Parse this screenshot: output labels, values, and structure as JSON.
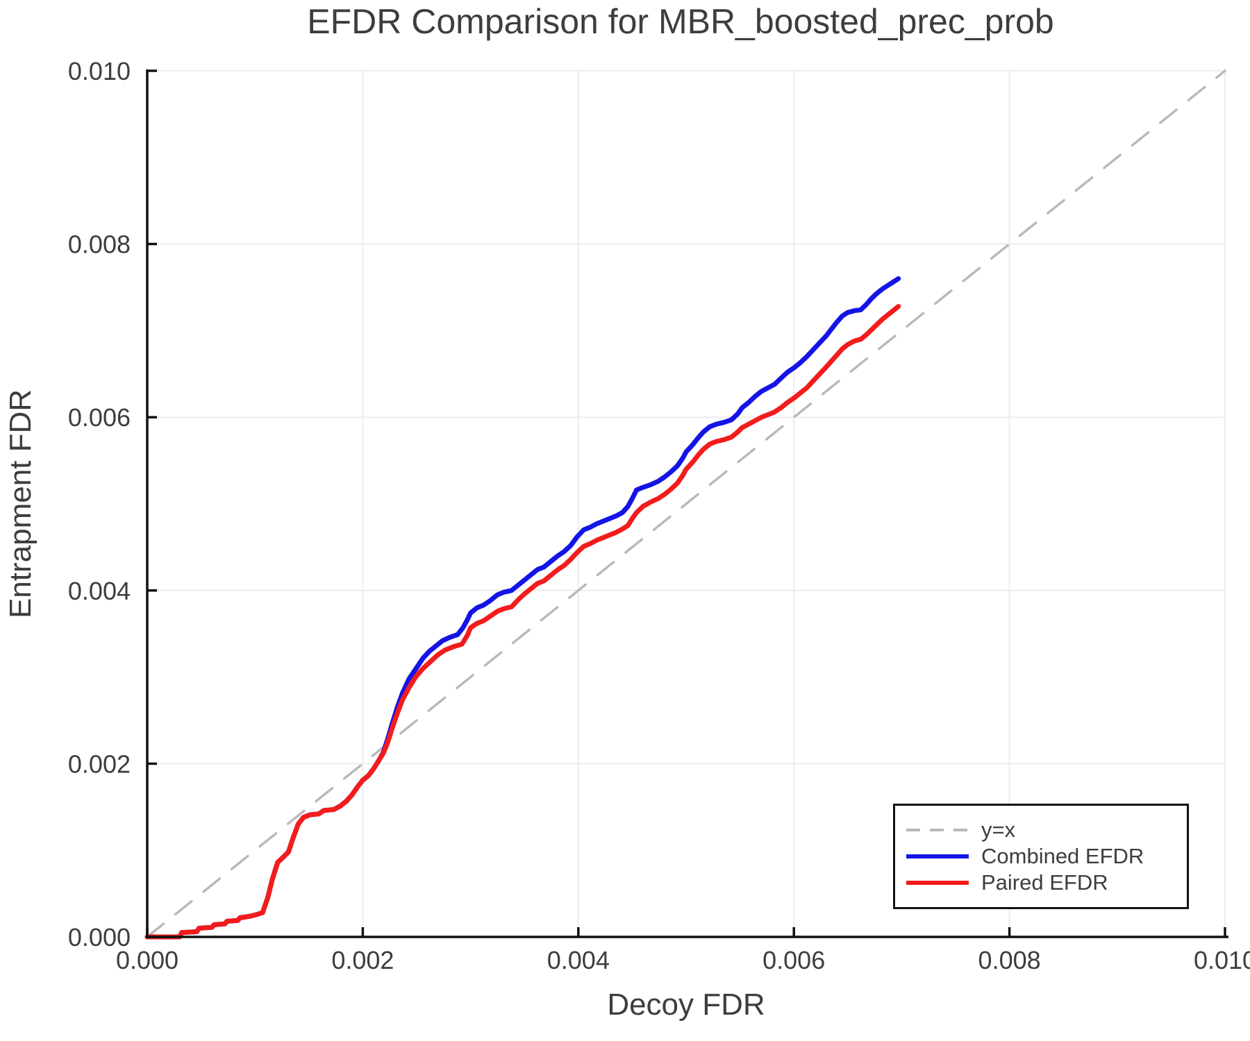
{
  "chart_data": {
    "type": "line",
    "title": "EFDR Comparison for MBR_boosted_prec_prob",
    "xlabel": "Decoy FDR",
    "ylabel": "Entrapment FDR",
    "xlim": [
      0,
      0.01
    ],
    "ylim": [
      0,
      0.01
    ],
    "xticks": {
      "values": [
        0,
        0.002,
        0.004,
        0.006,
        0.008,
        0.01
      ],
      "labels": [
        "0.000",
        "0.002",
        "0.004",
        "0.006",
        "0.008",
        "0.010"
      ]
    },
    "yticks": {
      "values": [
        0,
        0.002,
        0.004,
        0.006,
        0.008,
        0.01
      ],
      "labels": [
        "0.000",
        "0.002",
        "0.004",
        "0.006",
        "0.008",
        "0.010"
      ]
    },
    "grid": true,
    "legend_position": "lower right",
    "colors": {
      "reference": "#b9b9b9",
      "combined": "#1414e6",
      "paired": "#f31c1c",
      "axis": "#111111",
      "grid": "#ececec",
      "text": "#3d3d3d"
    },
    "series": [
      {
        "name": "y=x",
        "style": "dashed",
        "color": "#b9b9b9",
        "points": [
          [
            0,
            0
          ],
          [
            0.01,
            0.01
          ]
        ]
      },
      {
        "name": "Combined EFDR",
        "style": "solid",
        "color": "#1414e6",
        "points": [
          [
            0,
            0
          ],
          [
            0.0003,
            0
          ],
          [
            0.00032,
            5e-05
          ],
          [
            0.00046,
            6e-05
          ],
          [
            0.00048,
            0.0001
          ],
          [
            0.0006,
            0.00011
          ],
          [
            0.00062,
            0.00014
          ],
          [
            0.00072,
            0.00015
          ],
          [
            0.00074,
            0.00018
          ],
          [
            0.00084,
            0.00019
          ],
          [
            0.00086,
            0.00022
          ],
          [
            0.00096,
            0.00024
          ],
          [
            0.00102,
            0.00026
          ],
          [
            0.00107,
            0.00028
          ],
          [
            0.00112,
            0.00046
          ],
          [
            0.00116,
            0.00066
          ],
          [
            0.00121,
            0.00086
          ],
          [
            0.00127,
            0.00093
          ],
          [
            0.00131,
            0.00098
          ],
          [
            0.00135,
            0.00113
          ],
          [
            0.0014,
            0.0013
          ],
          [
            0.00145,
            0.00138
          ],
          [
            0.00151,
            0.00141
          ],
          [
            0.00159,
            0.00142
          ],
          [
            0.00164,
            0.00146
          ],
          [
            0.00173,
            0.00147
          ],
          [
            0.00179,
            0.00151
          ],
          [
            0.00185,
            0.00157
          ],
          [
            0.0019,
            0.00164
          ],
          [
            0.00195,
            0.00173
          ],
          [
            0.002,
            0.00181
          ],
          [
            0.00205,
            0.00186
          ],
          [
            0.0021,
            0.00194
          ],
          [
            0.00215,
            0.00204
          ],
          [
            0.00219,
            0.00213
          ],
          [
            0.00223,
            0.00228
          ],
          [
            0.00227,
            0.00245
          ],
          [
            0.00232,
            0.00265
          ],
          [
            0.00237,
            0.00282
          ],
          [
            0.00243,
            0.00298
          ],
          [
            0.00249,
            0.00309
          ],
          [
            0.00256,
            0.00322
          ],
          [
            0.00262,
            0.0033
          ],
          [
            0.00268,
            0.00336
          ],
          [
            0.00274,
            0.00342
          ],
          [
            0.00281,
            0.00346
          ],
          [
            0.00288,
            0.00349
          ],
          [
            0.00293,
            0.00357
          ],
          [
            0.00297,
            0.00366
          ],
          [
            0.003,
            0.00374
          ],
          [
            0.00306,
            0.0038
          ],
          [
            0.00312,
            0.00383
          ],
          [
            0.00318,
            0.00388
          ],
          [
            0.00325,
            0.00395
          ],
          [
            0.00331,
            0.00398
          ],
          [
            0.00338,
            0.004
          ],
          [
            0.00344,
            0.00406
          ],
          [
            0.0035,
            0.00412
          ],
          [
            0.00356,
            0.00418
          ],
          [
            0.00362,
            0.00424
          ],
          [
            0.00368,
            0.00427
          ],
          [
            0.00374,
            0.00433
          ],
          [
            0.00381,
            0.0044
          ],
          [
            0.00387,
            0.00445
          ],
          [
            0.00393,
            0.00452
          ],
          [
            0.00399,
            0.00462
          ],
          [
            0.00405,
            0.0047
          ],
          [
            0.00411,
            0.00473
          ],
          [
            0.00417,
            0.00477
          ],
          [
            0.00423,
            0.0048
          ],
          [
            0.00429,
            0.00483
          ],
          [
            0.00435,
            0.00486
          ],
          [
            0.00441,
            0.0049
          ],
          [
            0.00446,
            0.00497
          ],
          [
            0.0045,
            0.00506
          ],
          [
            0.00454,
            0.00516
          ],
          [
            0.0046,
            0.00519
          ],
          [
            0.00467,
            0.00522
          ],
          [
            0.00474,
            0.00526
          ],
          [
            0.0048,
            0.00531
          ],
          [
            0.00486,
            0.00537
          ],
          [
            0.00492,
            0.00544
          ],
          [
            0.00497,
            0.00553
          ],
          [
            0.005,
            0.0056
          ],
          [
            0.00506,
            0.00568
          ],
          [
            0.00511,
            0.00576
          ],
          [
            0.00516,
            0.00583
          ],
          [
            0.00522,
            0.00589
          ],
          [
            0.00528,
            0.00592
          ],
          [
            0.00535,
            0.00594
          ],
          [
            0.00542,
            0.00597
          ],
          [
            0.00548,
            0.00604
          ],
          [
            0.00552,
            0.00611
          ],
          [
            0.00558,
            0.00617
          ],
          [
            0.00564,
            0.00624
          ],
          [
            0.0057,
            0.0063
          ],
          [
            0.00576,
            0.00634
          ],
          [
            0.00582,
            0.00638
          ],
          [
            0.00588,
            0.00645
          ],
          [
            0.00594,
            0.00652
          ],
          [
            0.006,
            0.00657
          ],
          [
            0.00606,
            0.00663
          ],
          [
            0.00612,
            0.0067
          ],
          [
            0.00618,
            0.00678
          ],
          [
            0.00624,
            0.00686
          ],
          [
            0.0063,
            0.00694
          ],
          [
            0.00635,
            0.00702
          ],
          [
            0.0064,
            0.0071
          ],
          [
            0.00645,
            0.00717
          ],
          [
            0.0065,
            0.00721
          ],
          [
            0.00656,
            0.00723
          ],
          [
            0.00662,
            0.00724
          ],
          [
            0.00667,
            0.0073
          ],
          [
            0.00672,
            0.00737
          ],
          [
            0.00677,
            0.00743
          ],
          [
            0.00682,
            0.00748
          ],
          [
            0.00687,
            0.00752
          ],
          [
            0.00692,
            0.00756
          ],
          [
            0.00697,
            0.0076
          ]
        ]
      },
      {
        "name": "Paired EFDR",
        "style": "solid",
        "color": "#f31c1c",
        "points": [
          [
            0,
            0
          ],
          [
            0.0003,
            0
          ],
          [
            0.00032,
            5e-05
          ],
          [
            0.00046,
            6e-05
          ],
          [
            0.00048,
            0.0001
          ],
          [
            0.0006,
            0.00011
          ],
          [
            0.00062,
            0.00014
          ],
          [
            0.00072,
            0.00015
          ],
          [
            0.00074,
            0.00018
          ],
          [
            0.00084,
            0.00019
          ],
          [
            0.00086,
            0.00022
          ],
          [
            0.00096,
            0.00024
          ],
          [
            0.00102,
            0.00026
          ],
          [
            0.00107,
            0.00028
          ],
          [
            0.00112,
            0.00046
          ],
          [
            0.00116,
            0.00066
          ],
          [
            0.00121,
            0.00086
          ],
          [
            0.00127,
            0.00093
          ],
          [
            0.00131,
            0.00098
          ],
          [
            0.00135,
            0.00113
          ],
          [
            0.0014,
            0.0013
          ],
          [
            0.00145,
            0.00138
          ],
          [
            0.00151,
            0.00141
          ],
          [
            0.00159,
            0.00142
          ],
          [
            0.00164,
            0.00146
          ],
          [
            0.00173,
            0.00147
          ],
          [
            0.00179,
            0.00151
          ],
          [
            0.00185,
            0.00157
          ],
          [
            0.0019,
            0.00164
          ],
          [
            0.00195,
            0.00173
          ],
          [
            0.002,
            0.00181
          ],
          [
            0.00205,
            0.00186
          ],
          [
            0.0021,
            0.00194
          ],
          [
            0.00215,
            0.00204
          ],
          [
            0.00219,
            0.00212
          ],
          [
            0.00223,
            0.00224
          ],
          [
            0.00227,
            0.0024
          ],
          [
            0.00232,
            0.00258
          ],
          [
            0.00237,
            0.00274
          ],
          [
            0.00243,
            0.00288
          ],
          [
            0.00249,
            0.003
          ],
          [
            0.00256,
            0.0031
          ],
          [
            0.00263,
            0.00318
          ],
          [
            0.00269,
            0.00325
          ],
          [
            0.00276,
            0.00331
          ],
          [
            0.00284,
            0.00335
          ],
          [
            0.00292,
            0.00338
          ],
          [
            0.00297,
            0.00348
          ],
          [
            0.003,
            0.00357
          ],
          [
            0.00306,
            0.00362
          ],
          [
            0.00312,
            0.00365
          ],
          [
            0.00318,
            0.0037
          ],
          [
            0.00325,
            0.00376
          ],
          [
            0.00331,
            0.00379
          ],
          [
            0.00338,
            0.00381
          ],
          [
            0.00344,
            0.00389
          ],
          [
            0.0035,
            0.00396
          ],
          [
            0.00356,
            0.00402
          ],
          [
            0.00362,
            0.00408
          ],
          [
            0.00368,
            0.00411
          ],
          [
            0.00374,
            0.00417
          ],
          [
            0.00381,
            0.00424
          ],
          [
            0.00387,
            0.00429
          ],
          [
            0.00393,
            0.00436
          ],
          [
            0.00399,
            0.00444
          ],
          [
            0.00405,
            0.00451
          ],
          [
            0.00411,
            0.00454
          ],
          [
            0.00417,
            0.00458
          ],
          [
            0.00423,
            0.00461
          ],
          [
            0.00429,
            0.00464
          ],
          [
            0.00435,
            0.00467
          ],
          [
            0.00441,
            0.00471
          ],
          [
            0.00446,
            0.00475
          ],
          [
            0.0045,
            0.00483
          ],
          [
            0.00454,
            0.0049
          ],
          [
            0.0046,
            0.00497
          ],
          [
            0.00467,
            0.00502
          ],
          [
            0.00474,
            0.00506
          ],
          [
            0.0048,
            0.00511
          ],
          [
            0.00486,
            0.00517
          ],
          [
            0.00492,
            0.00524
          ],
          [
            0.00497,
            0.00533
          ],
          [
            0.005,
            0.0054
          ],
          [
            0.00506,
            0.00548
          ],
          [
            0.00511,
            0.00556
          ],
          [
            0.00516,
            0.00563
          ],
          [
            0.00522,
            0.00569
          ],
          [
            0.00528,
            0.00572
          ],
          [
            0.00535,
            0.00574
          ],
          [
            0.00542,
            0.00577
          ],
          [
            0.00548,
            0.00583
          ],
          [
            0.00552,
            0.00588
          ],
          [
            0.00558,
            0.00592
          ],
          [
            0.00564,
            0.00596
          ],
          [
            0.0057,
            0.006
          ],
          [
            0.00576,
            0.00603
          ],
          [
            0.00582,
            0.00606
          ],
          [
            0.00588,
            0.00611
          ],
          [
            0.00594,
            0.00617
          ],
          [
            0.006,
            0.00622
          ],
          [
            0.00606,
            0.00628
          ],
          [
            0.00612,
            0.00634
          ],
          [
            0.00618,
            0.00642
          ],
          [
            0.00624,
            0.0065
          ],
          [
            0.0063,
            0.00658
          ],
          [
            0.00635,
            0.00665
          ],
          [
            0.0064,
            0.00672
          ],
          [
            0.00645,
            0.00679
          ],
          [
            0.0065,
            0.00684
          ],
          [
            0.00656,
            0.00688
          ],
          [
            0.00662,
            0.0069
          ],
          [
            0.00667,
            0.00695
          ],
          [
            0.00672,
            0.00701
          ],
          [
            0.00677,
            0.00707
          ],
          [
            0.00682,
            0.00713
          ],
          [
            0.00687,
            0.00718
          ],
          [
            0.00692,
            0.00723
          ],
          [
            0.00697,
            0.00728
          ]
        ]
      }
    ]
  }
}
